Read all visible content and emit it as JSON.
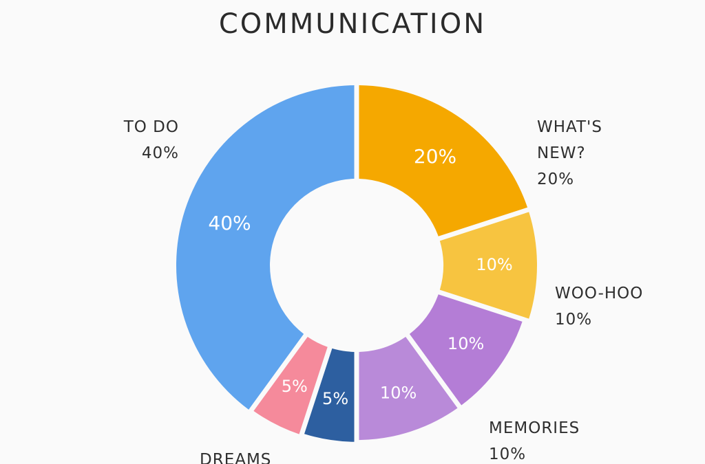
{
  "chart_data": {
    "type": "pie",
    "variant": "donut",
    "title": "COMMUNICATION",
    "slices": [
      {
        "label": "WHAT'S NEW?",
        "label_lines": [
          "WHAT'S",
          "NEW?"
        ],
        "value": 20,
        "display": "20%",
        "color": "#f5a800"
      },
      {
        "label": "WOO-HOO",
        "label_lines": [
          "WOO-HOO"
        ],
        "value": 10,
        "display": "10%",
        "color": "#f7c440"
      },
      {
        "label": "",
        "label_lines": [],
        "value": 10,
        "display": "10%",
        "color": "#b47dd6"
      },
      {
        "label": "MEMORIES",
        "label_lines": [
          "MEMORIES"
        ],
        "value": 10,
        "display": "10%",
        "color": "#b98ad9"
      },
      {
        "label": "",
        "label_lines": [],
        "value": 5,
        "display": "5%",
        "color": "#2d5fa0"
      },
      {
        "label": "DREAMS",
        "label_lines": [
          "DREAMS"
        ],
        "value": 5,
        "display": "5%",
        "color": "#f58a9b"
      },
      {
        "label": "TO DO",
        "label_lines": [
          "TO DO"
        ],
        "value": 40,
        "display": "40%",
        "color": "#5fa4ee"
      }
    ],
    "outer_labels": [
      {
        "lines": [
          "TO DO",
          "40%"
        ],
        "align": "right"
      },
      {
        "lines": [
          "WHAT'S",
          "NEW?",
          "20%"
        ],
        "align": "left"
      },
      {
        "lines": [
          "WOO-HOO",
          "10%"
        ],
        "align": "left"
      },
      {
        "lines": [
          "MEMORIES",
          "10%"
        ],
        "align": "left"
      },
      {
        "lines": [
          "DREAMS"
        ],
        "align": "left"
      }
    ]
  }
}
